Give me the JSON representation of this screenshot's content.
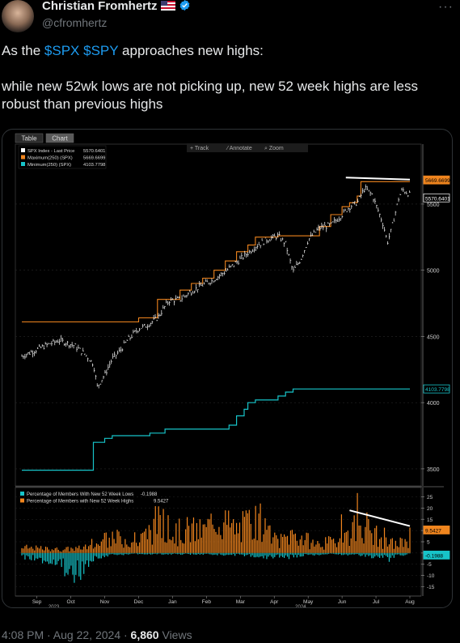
{
  "author": {
    "name": "Christian Fromhertz",
    "handle": "@cfromhertz"
  },
  "tweet": {
    "line1_prefix": "As the ",
    "cashtag1": "$SPX",
    "cashtag2": "$SPY",
    "line1_suffix": " approaches new highs:",
    "line2": "while new 52wk lows are not picking up, new 52 week highs are less robust than previous highs"
  },
  "footer": {
    "time": "4:08 PM · Aug 22, 2024 · ",
    "views": "6,860",
    "views_label": " Views"
  },
  "terminal": {
    "tabs": [
      "Table",
      "Chart"
    ],
    "toolbar": [
      "+ Track",
      "⁄ Annotate",
      "⌕ Zoom"
    ],
    "colors": {
      "price": "#ffffff",
      "max": "#f0851e",
      "min": "#17c4c9",
      "lows": "#17c4c9",
      "highs": "#f0851e"
    },
    "x_labels": [
      "Sep",
      "Oct",
      "Nov",
      "Dec",
      "Jan",
      "Feb",
      "Mar",
      "Apr",
      "May",
      "Jun",
      "Jul",
      "Aug"
    ],
    "year_labels": [
      "2023",
      "2024"
    ]
  },
  "chart_data": [
    {
      "type": "line",
      "legend": [
        {
          "label": "SPX Index - Last Price",
          "value": "5570.6401"
        },
        {
          "label": "Maximum(250)  (SPX)",
          "value": "5669.6699"
        },
        {
          "label": "Minimum(250)  (SPX)",
          "value": "4103.7798"
        }
      ],
      "y_ticks": [
        3500,
        4000,
        4500,
        5000,
        5500
      ],
      "ylim": [
        3420,
        5830
      ],
      "value_labels": {
        "max": "5669.6699",
        "price": "5570.6401",
        "min": "4103.7798"
      },
      "price_path": [
        [
          0,
          4350
        ],
        [
          7,
          4440
        ],
        [
          10,
          4470
        ],
        [
          14,
          4430
        ],
        [
          17,
          4360
        ],
        [
          19,
          4290
        ],
        [
          20,
          4120
        ],
        [
          22,
          4210
        ],
        [
          24,
          4330
        ],
        [
          26,
          4390
        ],
        [
          28,
          4470
        ],
        [
          31,
          4560
        ],
        [
          33,
          4580
        ],
        [
          36,
          4640
        ],
        [
          39,
          4770
        ],
        [
          42,
          4780
        ],
        [
          45,
          4840
        ],
        [
          48,
          4890
        ],
        [
          51,
          4930
        ],
        [
          54,
          4990
        ],
        [
          57,
          5060
        ],
        [
          60,
          5130
        ],
        [
          62,
          5180
        ],
        [
          65,
          5230
        ],
        [
          68,
          5260
        ],
        [
          70,
          5200
        ],
        [
          71,
          5090
        ],
        [
          72,
          4990
        ],
        [
          74,
          5080
        ],
        [
          76,
          5230
        ],
        [
          79,
          5320
        ],
        [
          82,
          5340
        ],
        [
          85,
          5420
        ],
        [
          87,
          5480
        ],
        [
          89,
          5510
        ],
        [
          91,
          5620
        ],
        [
          93,
          5570
        ],
        [
          95,
          5420
        ],
        [
          96,
          5340
        ],
        [
          97,
          5210
        ],
        [
          98,
          5300
        ],
        [
          99,
          5420
        ],
        [
          100,
          5540
        ],
        [
          101,
          5610
        ],
        [
          103,
          5570
        ]
      ],
      "max_path": [
        [
          0,
          4610
        ],
        [
          31,
          4610
        ],
        [
          31,
          4640
        ],
        [
          36,
          4640
        ],
        [
          36,
          4780
        ],
        [
          42,
          4780
        ],
        [
          42,
          4850
        ],
        [
          45,
          4850
        ],
        [
          45,
          4900
        ],
        [
          48,
          4900
        ],
        [
          48,
          4940
        ],
        [
          51,
          4940
        ],
        [
          51,
          5000
        ],
        [
          54,
          5000
        ],
        [
          54,
          5070
        ],
        [
          57,
          5070
        ],
        [
          57,
          5140
        ],
        [
          60,
          5140
        ],
        [
          60,
          5190
        ],
        [
          62,
          5190
        ],
        [
          62,
          5250
        ],
        [
          68,
          5250
        ],
        [
          68,
          5260
        ],
        [
          79,
          5260
        ],
        [
          79,
          5330
        ],
        [
          82,
          5330
        ],
        [
          82,
          5420
        ],
        [
          85,
          5420
        ],
        [
          85,
          5480
        ],
        [
          87,
          5480
        ],
        [
          87,
          5510
        ],
        [
          89,
          5510
        ],
        [
          89,
          5560
        ],
        [
          90,
          5560
        ],
        [
          90,
          5669
        ],
        [
          103,
          5669
        ]
      ],
      "min_path": [
        [
          0,
          3490
        ],
        [
          19,
          3490
        ],
        [
          19,
          3700
        ],
        [
          22,
          3700
        ],
        [
          22,
          3730
        ],
        [
          24,
          3730
        ],
        [
          24,
          3750
        ],
        [
          34,
          3750
        ],
        [
          34,
          3770
        ],
        [
          38,
          3770
        ],
        [
          38,
          3800
        ],
        [
          55,
          3800
        ],
        [
          55,
          3830
        ],
        [
          57,
          3830
        ],
        [
          57,
          3900
        ],
        [
          59,
          3900
        ],
        [
          59,
          3950
        ],
        [
          60,
          3950
        ],
        [
          60,
          4000
        ],
        [
          62,
          4000
        ],
        [
          62,
          4020
        ],
        [
          68,
          4020
        ],
        [
          68,
          4050
        ],
        [
          70,
          4050
        ],
        [
          70,
          4080
        ],
        [
          72,
          4080
        ],
        [
          72,
          4103
        ],
        [
          103,
          4103
        ]
      ],
      "trend_line": [
        [
          86,
          5700
        ],
        [
          103,
          5685
        ]
      ]
    },
    {
      "type": "bar",
      "legend": [
        {
          "label": "Percentage of Members With New 52 Week Lows",
          "value": "-0.1988"
        },
        {
          "label": "Percentage of Members with New 52 Week Highs",
          "value": "9.5427"
        }
      ],
      "y_ticks": [
        25,
        20,
        15,
        10,
        5,
        0,
        -5,
        -10,
        -15
      ],
      "ylim": [
        -17,
        27
      ],
      "value_labels": {
        "highs": "9.5427",
        "lows": "-0.1988"
      },
      "highs_profile": [
        [
          0,
          3
        ],
        [
          10,
          2
        ],
        [
          18,
          3
        ],
        [
          22,
          7
        ],
        [
          27,
          8
        ],
        [
          31,
          6
        ],
        [
          34,
          13
        ],
        [
          36,
          18
        ],
        [
          40,
          11
        ],
        [
          44,
          13
        ],
        [
          48,
          12
        ],
        [
          52,
          20
        ],
        [
          54,
          17
        ],
        [
          57,
          13
        ],
        [
          59,
          15
        ],
        [
          61,
          18
        ],
        [
          64,
          13
        ],
        [
          68,
          6
        ],
        [
          72,
          11
        ],
        [
          75,
          8
        ],
        [
          78,
          5
        ],
        [
          82,
          6
        ],
        [
          86,
          10
        ],
        [
          88,
          14
        ],
        [
          90,
          18
        ],
        [
          93,
          12
        ],
        [
          96,
          6
        ],
        [
          100,
          5
        ],
        [
          102,
          8
        ],
        [
          103,
          9.5
        ]
      ],
      "lows_profile": [
        [
          0,
          -2
        ],
        [
          5,
          -3
        ],
        [
          9,
          -4
        ],
        [
          12,
          -8
        ],
        [
          15,
          -10
        ],
        [
          17,
          -6
        ],
        [
          20,
          -2
        ],
        [
          24,
          -1
        ],
        [
          30,
          -0.5
        ],
        [
          40,
          -0.5
        ],
        [
          60,
          -1
        ],
        [
          66,
          -2
        ],
        [
          70,
          -2
        ],
        [
          76,
          -1
        ],
        [
          82,
          -0.5
        ],
        [
          90,
          -1
        ],
        [
          95,
          -2
        ],
        [
          98,
          -3
        ],
        [
          100,
          -1.5
        ],
        [
          103,
          -0.2
        ]
      ],
      "trend_line": [
        [
          87,
          19
        ],
        [
          103,
          12
        ]
      ]
    }
  ]
}
